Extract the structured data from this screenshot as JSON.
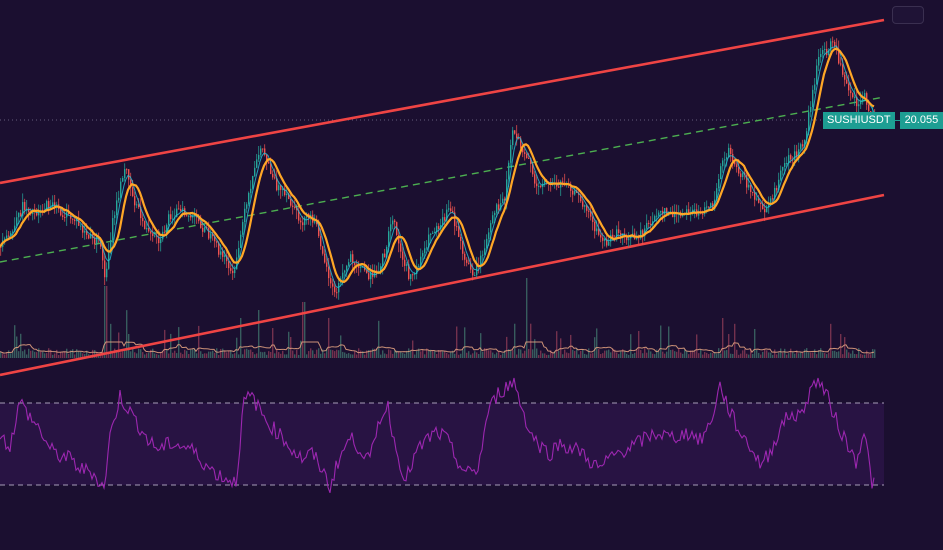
{
  "chart_data": {
    "type": "line",
    "symbol": "SUSHIUSDT",
    "last_price": "20.055",
    "colors": {
      "background": "#1b0f30",
      "candle_up": "#26a69a",
      "candle_down": "#ef5350",
      "ma_fast": "#ffa726",
      "ma_slow": "#26c6da",
      "channel_lines": "#ef4444",
      "channel_midline": "#4caf50",
      "volume": "#8a3a55",
      "volume_ma": "#e0a080",
      "rsi_line": "#9c27b0",
      "rsi_band_fill": "#2a1447",
      "rsi_band_lines": "#c9c0d8",
      "price_tag": "#1d9e93"
    },
    "price_path_trend": [
      [
        0,
        0.2
      ],
      [
        14,
        0.28
      ],
      [
        22,
        0.36
      ],
      [
        36,
        0.34
      ],
      [
        50,
        0.37
      ],
      [
        62,
        0.33
      ],
      [
        74,
        0.31
      ],
      [
        88,
        0.24
      ],
      [
        100,
        0.22
      ],
      [
        104,
        0.08
      ],
      [
        112,
        0.3
      ],
      [
        120,
        0.44
      ],
      [
        126,
        0.52
      ],
      [
        132,
        0.4
      ],
      [
        142,
        0.3
      ],
      [
        150,
        0.24
      ],
      [
        160,
        0.22
      ],
      [
        168,
        0.32
      ],
      [
        176,
        0.34
      ],
      [
        186,
        0.33
      ],
      [
        196,
        0.31
      ],
      [
        208,
        0.25
      ],
      [
        220,
        0.18
      ],
      [
        234,
        0.1
      ],
      [
        242,
        0.3
      ],
      [
        252,
        0.46
      ],
      [
        260,
        0.6
      ],
      [
        266,
        0.54
      ],
      [
        276,
        0.44
      ],
      [
        288,
        0.38
      ],
      [
        300,
        0.3
      ],
      [
        310,
        0.32
      ],
      [
        318,
        0.26
      ],
      [
        326,
        0.12
      ],
      [
        334,
        0.02
      ],
      [
        342,
        0.1
      ],
      [
        350,
        0.17
      ],
      [
        362,
        0.12
      ],
      [
        372,
        0.08
      ],
      [
        384,
        0.18
      ],
      [
        392,
        0.32
      ],
      [
        400,
        0.18
      ],
      [
        410,
        0.08
      ],
      [
        422,
        0.18
      ],
      [
        430,
        0.26
      ],
      [
        440,
        0.3
      ],
      [
        450,
        0.36
      ],
      [
        458,
        0.24
      ],
      [
        466,
        0.14
      ],
      [
        474,
        0.1
      ],
      [
        484,
        0.2
      ],
      [
        494,
        0.34
      ],
      [
        504,
        0.4
      ],
      [
        512,
        0.66
      ],
      [
        520,
        0.6
      ],
      [
        528,
        0.54
      ],
      [
        534,
        0.44
      ],
      [
        544,
        0.46
      ],
      [
        556,
        0.44
      ],
      [
        566,
        0.46
      ],
      [
        576,
        0.4
      ],
      [
        586,
        0.36
      ],
      [
        596,
        0.26
      ],
      [
        606,
        0.22
      ],
      [
        618,
        0.26
      ],
      [
        630,
        0.24
      ],
      [
        642,
        0.26
      ],
      [
        654,
        0.32
      ],
      [
        666,
        0.34
      ],
      [
        680,
        0.32
      ],
      [
        692,
        0.34
      ],
      [
        704,
        0.34
      ],
      [
        712,
        0.36
      ],
      [
        720,
        0.52
      ],
      [
        728,
        0.58
      ],
      [
        738,
        0.5
      ],
      [
        748,
        0.44
      ],
      [
        758,
        0.36
      ],
      [
        766,
        0.34
      ],
      [
        776,
        0.44
      ],
      [
        786,
        0.54
      ],
      [
        796,
        0.56
      ],
      [
        804,
        0.62
      ],
      [
        812,
        0.8
      ],
      [
        818,
        0.94
      ],
      [
        826,
        0.96
      ],
      [
        832,
        1.0
      ],
      [
        840,
        0.9
      ],
      [
        848,
        0.82
      ],
      [
        856,
        0.76
      ],
      [
        864,
        0.78
      ],
      [
        872,
        0.7
      ]
    ],
    "rsi_path_trend": [
      [
        0,
        0.55
      ],
      [
        10,
        0.48
      ],
      [
        20,
        0.82
      ],
      [
        30,
        0.7
      ],
      [
        40,
        0.6
      ],
      [
        50,
        0.45
      ],
      [
        60,
        0.4
      ],
      [
        70,
        0.38
      ],
      [
        80,
        0.3
      ],
      [
        92,
        0.28
      ],
      [
        104,
        0.15
      ],
      [
        110,
        0.55
      ],
      [
        120,
        0.86
      ],
      [
        130,
        0.74
      ],
      [
        140,
        0.62
      ],
      [
        150,
        0.5
      ],
      [
        160,
        0.45
      ],
      [
        170,
        0.5
      ],
      [
        180,
        0.48
      ],
      [
        190,
        0.46
      ],
      [
        200,
        0.38
      ],
      [
        210,
        0.3
      ],
      [
        222,
        0.24
      ],
      [
        236,
        0.2
      ],
      [
        244,
        0.82
      ],
      [
        252,
        0.86
      ],
      [
        262,
        0.72
      ],
      [
        272,
        0.62
      ],
      [
        282,
        0.55
      ],
      [
        292,
        0.45
      ],
      [
        302,
        0.38
      ],
      [
        312,
        0.42
      ],
      [
        322,
        0.3
      ],
      [
        330,
        0.16
      ],
      [
        338,
        0.36
      ],
      [
        350,
        0.54
      ],
      [
        360,
        0.46
      ],
      [
        370,
        0.36
      ],
      [
        380,
        0.7
      ],
      [
        388,
        0.78
      ],
      [
        396,
        0.44
      ],
      [
        406,
        0.22
      ],
      [
        416,
        0.42
      ],
      [
        426,
        0.52
      ],
      [
        436,
        0.58
      ],
      [
        446,
        0.54
      ],
      [
        456,
        0.38
      ],
      [
        466,
        0.26
      ],
      [
        478,
        0.3
      ],
      [
        488,
        0.74
      ],
      [
        498,
        0.88
      ],
      [
        508,
        0.94
      ],
      [
        514,
        0.98
      ],
      [
        520,
        0.82
      ],
      [
        530,
        0.58
      ],
      [
        540,
        0.48
      ],
      [
        550,
        0.42
      ],
      [
        560,
        0.5
      ],
      [
        570,
        0.46
      ],
      [
        580,
        0.44
      ],
      [
        590,
        0.36
      ],
      [
        600,
        0.3
      ],
      [
        612,
        0.4
      ],
      [
        622,
        0.44
      ],
      [
        634,
        0.48
      ],
      [
        646,
        0.54
      ],
      [
        658,
        0.58
      ],
      [
        670,
        0.54
      ],
      [
        680,
        0.56
      ],
      [
        690,
        0.58
      ],
      [
        700,
        0.52
      ],
      [
        710,
        0.64
      ],
      [
        720,
        0.94
      ],
      [
        730,
        0.74
      ],
      [
        740,
        0.58
      ],
      [
        750,
        0.48
      ],
      [
        760,
        0.34
      ],
      [
        770,
        0.42
      ],
      [
        780,
        0.62
      ],
      [
        790,
        0.72
      ],
      [
        800,
        0.7
      ],
      [
        810,
        0.9
      ],
      [
        818,
        1.0
      ],
      [
        828,
        0.84
      ],
      [
        838,
        0.64
      ],
      [
        848,
        0.48
      ],
      [
        856,
        0.36
      ],
      [
        864,
        0.6
      ],
      [
        872,
        0.2
      ]
    ],
    "volume_spikes": [
      [
        105,
        0.9
      ],
      [
        127,
        0.3
      ],
      [
        240,
        0.5
      ],
      [
        258,
        0.6
      ],
      [
        303,
        0.7
      ],
      [
        328,
        0.5
      ],
      [
        526,
        1.0
      ],
      [
        722,
        0.5
      ],
      [
        840,
        0.3
      ]
    ],
    "rsi_levels": {
      "upper": 70,
      "lower": 30
    }
  }
}
